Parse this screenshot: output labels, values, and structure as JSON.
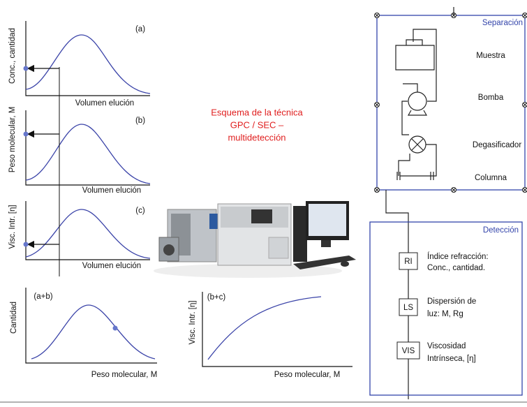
{
  "title": [
    "Esquema de la técnica",
    "GPC / SEC –",
    "multidetección"
  ],
  "panels": [
    {
      "tag": "(a)",
      "y_label": "Conc., cantidad",
      "x_label": "Volumen elución"
    },
    {
      "tag": "(b)",
      "y_label": "Peso molecular, M",
      "x_label": "Volumen elución"
    },
    {
      "tag": "(c)",
      "y_label": "Visc. Intr. [η]",
      "x_label": "Volumen elución"
    },
    {
      "tag": "(a+b)",
      "y_label": "Cantidad",
      "x_label": "Peso molecular, M"
    },
    {
      "tag": "(b+c)",
      "y_label": "Visc. Intr. [η]",
      "x_label": "Peso molecular, M"
    }
  ],
  "separation": {
    "title": "Separación",
    "items": [
      "Muestra",
      "Bomba",
      "Degasificador",
      "Columna"
    ]
  },
  "detection": {
    "title": "Detección",
    "detectors": [
      {
        "code": "RI",
        "lines": [
          "Índice refracción:",
          "Conc., cantidad."
        ]
      },
      {
        "code": "LS",
        "lines": [
          "Dispersión de",
          "luz:  M, Rg"
        ]
      },
      {
        "code": "VIS",
        "lines": [
          "Viscosidad",
          "Intrínseca, [η]"
        ]
      }
    ]
  }
}
